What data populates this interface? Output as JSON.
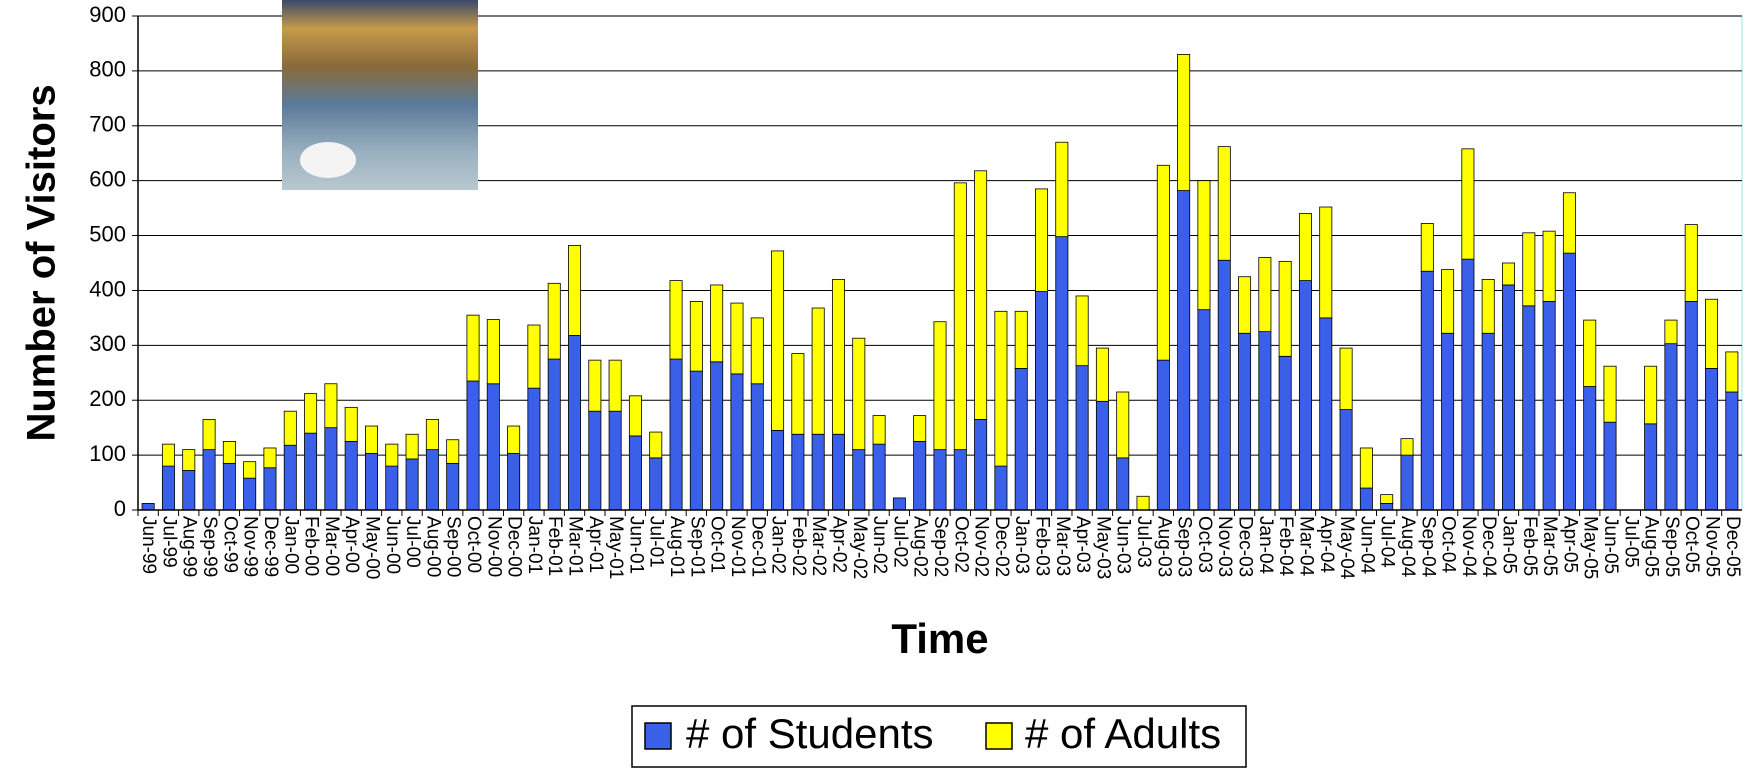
{
  "chart_data": {
    "type": "stacked_bar",
    "ylabel": "Number of Visitors",
    "xlabel": "Time",
    "categories": [
      "Jun-99",
      "Jul-99",
      "Aug-99",
      "Sep-99",
      "Oct-99",
      "Nov-99",
      "Dec-99",
      "Jan-00",
      "Feb-00",
      "Mar-00",
      "Apr-00",
      "May-00",
      "Jun-00",
      "Jul-00",
      "Aug-00",
      "Sep-00",
      "Oct-00",
      "Nov-00",
      "Dec-00",
      "Jan-01",
      "Feb-01",
      "Mar-01",
      "Apr-01",
      "May-01",
      "Jun-01",
      "Jul-01",
      "Aug-01",
      "Sep-01",
      "Oct-01",
      "Nov-01",
      "Dec-01",
      "Jan-02",
      "Feb-02",
      "Mar-02",
      "Apr-02",
      "May-02",
      "Jun-02",
      "Jul-02",
      "Aug-02",
      "Sep-02",
      "Oct-02",
      "Nov-02",
      "Dec-02",
      "Jan-03",
      "Feb-03",
      "Mar-03",
      "Apr-03",
      "May-03",
      "Jun-03",
      "Jul-03",
      "Aug-03",
      "Sep-03",
      "Oct-03",
      "Nov-03",
      "Dec-03",
      "Jan-04",
      "Feb-04",
      "Mar-04",
      "Apr-04",
      "May-04",
      "Jun-04",
      "Jul-04",
      "Aug-04",
      "Sep-04",
      "Oct-04",
      "Nov-04",
      "Dec-04",
      "Jan-05",
      "Feb-05",
      "Mar-05",
      "Apr-05",
      "May-05",
      "Jun-05",
      "Jul-05",
      "Aug-05",
      "Sep-05",
      "Oct-05",
      "Nov-05",
      "Dec-05"
    ],
    "series": [
      {
        "name": "# of Students",
        "color": "#3a5fe8",
        "values": [
          12,
          80,
          72,
          110,
          85,
          58,
          77,
          118,
          140,
          150,
          125,
          103,
          80,
          93,
          110,
          85,
          235,
          230,
          103,
          222,
          275,
          318,
          180,
          180,
          135,
          95,
          275,
          253,
          270,
          248,
          230,
          145,
          138,
          138,
          138,
          110,
          120,
          22,
          125,
          110,
          110,
          165,
          80,
          258,
          398,
          498,
          263,
          198,
          95,
          0,
          273,
          582,
          365,
          455,
          322,
          325,
          280,
          418,
          350,
          183,
          40,
          12,
          100,
          435,
          322,
          457,
          322,
          410,
          372,
          380,
          468,
          225,
          160,
          null,
          157,
          303,
          380,
          258,
          215
        ]
      },
      {
        "name": "# of Adults",
        "color": "#ffff00",
        "values": [
          0,
          40,
          38,
          55,
          40,
          30,
          36,
          62,
          72,
          80,
          62,
          50,
          40,
          45,
          55,
          43,
          120,
          117,
          50,
          115,
          138,
          164,
          93,
          93,
          73,
          47,
          143,
          127,
          140,
          129,
          120,
          327,
          147,
          230,
          282,
          203,
          52,
          0,
          47,
          233,
          486,
          453,
          282,
          104,
          187,
          172,
          127,
          97,
          120,
          25,
          355,
          248,
          235,
          207,
          103,
          135,
          173,
          122,
          202,
          112,
          73,
          16,
          30,
          87,
          116,
          201,
          98,
          40,
          133,
          128,
          110,
          121,
          102,
          null,
          105,
          43,
          140,
          126,
          73
        ]
      }
    ],
    "ylim": [
      0,
      900
    ],
    "yticks": [
      0,
      100,
      200,
      300,
      400,
      500,
      600,
      700,
      800,
      900
    ],
    "grid": true
  }
}
